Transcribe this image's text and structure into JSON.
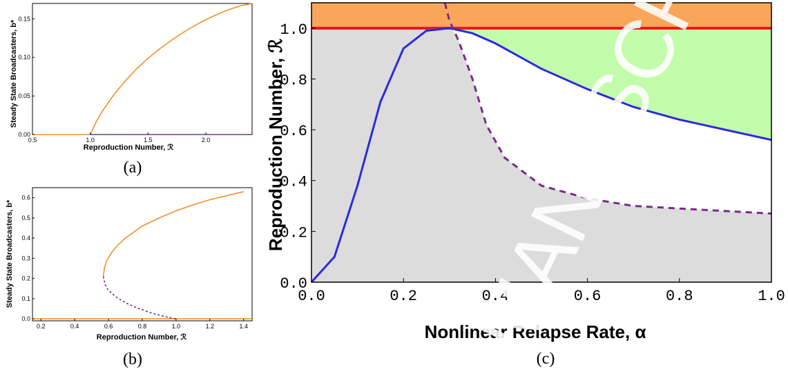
{
  "chart_data": [
    {
      "panel": "a",
      "type": "line",
      "caption": "(a)",
      "xlabel": "Reproduction Number, ℛ",
      "ylabel": "Steady State  Broadcasters,  b*",
      "xlim": [
        0.5,
        2.4
      ],
      "ylim": [
        0,
        0.17
      ],
      "xticks": [
        "0.5",
        "1.0",
        "1.5",
        "2.0"
      ],
      "yticks": [
        "0.00",
        "0.05",
        "0.10",
        "0.15"
      ],
      "series": [
        {
          "style": "solid",
          "color": "#f0902a",
          "x": [
            0.5,
            1.0
          ],
          "y": [
            0,
            0
          ]
        },
        {
          "style": "solid",
          "color": "#f0902a",
          "x": [
            1.0,
            1.05,
            1.1,
            1.2,
            1.3,
            1.4,
            1.5,
            1.6,
            1.7,
            1.8,
            1.9,
            2.0,
            2.1,
            2.2,
            2.3,
            2.4
          ],
          "y": [
            0,
            0.016,
            0.029,
            0.051,
            0.069,
            0.085,
            0.099,
            0.111,
            0.122,
            0.132,
            0.141,
            0.149,
            0.156,
            0.162,
            0.167,
            0.17
          ]
        },
        {
          "style": "dashed",
          "color": "#7a2a8a",
          "x": [
            1.0,
            2.4
          ],
          "y": [
            0,
            0
          ]
        }
      ]
    },
    {
      "panel": "b",
      "type": "line",
      "caption": "(b)",
      "xlabel": "Reproduction Number, ℛ",
      "ylabel": "Steady State Broadcasters, b*",
      "xlim": [
        0.15,
        1.45
      ],
      "ylim": [
        -0.01,
        0.65
      ],
      "xticks": [
        "0.2",
        "0.4",
        "0.6",
        "0.8",
        "1.0",
        "1.2",
        "1.4"
      ],
      "yticks": [
        "0.0",
        "0.1",
        "0.2",
        "0.3",
        "0.4",
        "0.5",
        "0.6"
      ],
      "series": [
        {
          "style": "solid",
          "color": "#f0902a",
          "x": [
            0.15,
            1.45
          ],
          "y": [
            0,
            0
          ]
        },
        {
          "style": "solid",
          "color": "#f0902a",
          "x": [
            0.57,
            0.575,
            0.59,
            0.62,
            0.66,
            0.7,
            0.8,
            0.9,
            1.0,
            1.1,
            1.2,
            1.3,
            1.4
          ],
          "y": [
            0.21,
            0.25,
            0.29,
            0.33,
            0.37,
            0.4,
            0.46,
            0.5,
            0.535,
            0.565,
            0.59,
            0.61,
            0.63
          ]
        },
        {
          "style": "dashed",
          "color": "#7a2a8a",
          "x": [
            0.57,
            0.58,
            0.6,
            0.65,
            0.7,
            0.75,
            0.8,
            0.85,
            0.9,
            0.95,
            1.0
          ],
          "y": [
            0.21,
            0.17,
            0.14,
            0.105,
            0.08,
            0.06,
            0.045,
            0.03,
            0.018,
            0.008,
            0
          ]
        }
      ]
    },
    {
      "panel": "c",
      "type": "area",
      "caption": "(c)",
      "xlabel": "Nonlinear Relapse Rate, α",
      "ylabel": "Reproduction Number, ℛ",
      "xlim": [
        0,
        1.0
      ],
      "ylim": [
        0,
        1.1
      ],
      "xticks": [
        "0.0",
        "0.2",
        "0.4",
        "0.6",
        "0.8",
        "1.0"
      ],
      "yticks": [
        "0.0",
        "0.2",
        "0.4",
        "0.6",
        "0.8",
        "1.0"
      ],
      "threshold_line": {
        "y": 1.0,
        "color": "#e8161a"
      },
      "regions": {
        "above_threshold": "#f9a55a",
        "bistable": "#c2fcaa",
        "no_broadcasters": "#dcdcdc"
      },
      "series": [
        {
          "name": "",
          "style": "solid",
          "color": "#2a2ae0",
          "x": [
            0,
            0.05,
            0.1,
            0.15,
            0.2,
            0.25,
            0.3,
            0.35,
            0.4,
            0.5,
            0.6,
            0.7,
            0.8,
            0.9,
            1.0
          ],
          "y": [
            0,
            0.1,
            0.38,
            0.71,
            0.92,
            0.99,
            1.0,
            0.98,
            0.94,
            0.84,
            0.76,
            0.69,
            0.64,
            0.6,
            0.56
          ]
        },
        {
          "name": "",
          "style": "dashed",
          "color": "#7a2a8a",
          "x": [
            0.29,
            0.3,
            0.32,
            0.35,
            0.38,
            0.42,
            0.5,
            0.6,
            0.7,
            0.8,
            0.9,
            1.0
          ],
          "y": [
            1.1,
            1.03,
            0.95,
            0.8,
            0.62,
            0.49,
            0.38,
            0.33,
            0.3,
            0.29,
            0.28,
            0.27
          ]
        }
      ]
    }
  ],
  "watermark": "MANUSCRIPT"
}
